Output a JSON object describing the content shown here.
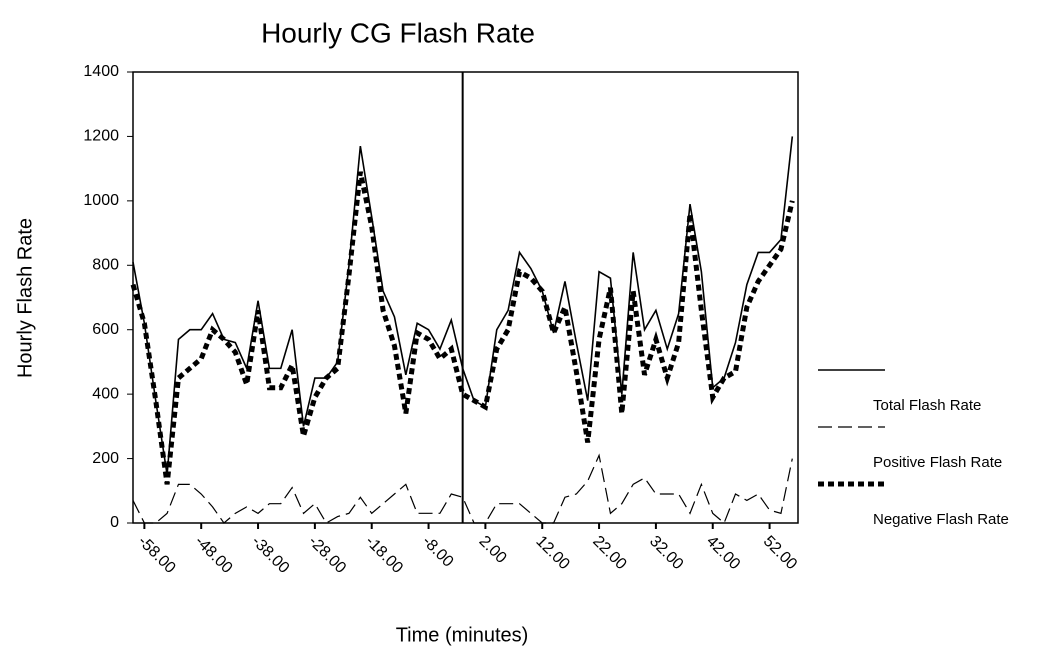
{
  "chart_data": {
    "type": "line",
    "title": "Hourly CG Flash Rate",
    "x_label": "Time (minutes)",
    "y_label": "Hourly Flash Rate",
    "x": [
      -60,
      -58,
      -56,
      -54,
      -52,
      -50,
      -48,
      -46,
      -44,
      -42,
      -40,
      -38,
      -36,
      -34,
      -32,
      -30,
      -28,
      -26,
      -24,
      -22,
      -20,
      -18,
      -16,
      -14,
      -12,
      -10,
      -8,
      -6,
      -4,
      -2,
      0,
      2,
      4,
      6,
      8,
      10,
      12,
      14,
      16,
      18,
      20,
      22,
      24,
      26,
      28,
      30,
      32,
      34,
      36,
      38,
      40,
      42,
      44,
      46,
      48,
      50,
      52,
      54,
      56
    ],
    "series": [
      {
        "name": "Total Flash Rate",
        "color": "#000000",
        "values": [
          810,
          620,
          380,
          150,
          570,
          600,
          600,
          650,
          570,
          560,
          480,
          690,
          480,
          480,
          600,
          300,
          450,
          450,
          500,
          800,
          1170,
          950,
          720,
          640,
          460,
          620,
          600,
          540,
          630,
          480,
          380,
          360,
          600,
          660,
          840,
          790,
          720,
          590,
          750,
          560,
          380,
          780,
          760,
          400,
          840,
          600,
          660,
          540,
          650,
          990,
          780,
          420,
          450,
          560,
          740,
          840,
          840,
          880,
          1200
        ]
      },
      {
        "name": "Positive Flash Rate",
        "color": "#000000",
        "values": [
          70,
          0,
          0,
          30,
          120,
          120,
          90,
          50,
          0,
          30,
          50,
          30,
          60,
          60,
          110,
          30,
          60,
          0,
          20,
          30,
          80,
          30,
          60,
          90,
          120,
          30,
          30,
          30,
          90,
          80,
          0,
          0,
          60,
          60,
          60,
          30,
          0,
          0,
          80,
          90,
          130,
          210,
          30,
          60,
          120,
          140,
          90,
          90,
          90,
          30,
          120,
          30,
          0,
          90,
          70,
          90,
          40,
          30,
          200
        ]
      },
      {
        "name": "Negative Flash Rate",
        "color": "#000000",
        "values": [
          740,
          620,
          380,
          120,
          450,
          480,
          510,
          600,
          570,
          530,
          430,
          660,
          420,
          420,
          490,
          270,
          390,
          450,
          480,
          770,
          1090,
          920,
          660,
          550,
          340,
          590,
          570,
          510,
          540,
          400,
          380,
          360,
          540,
          600,
          780,
          760,
          720,
          590,
          670,
          470,
          250,
          570,
          730,
          340,
          720,
          460,
          570,
          450,
          560,
          960,
          660,
          390,
          450,
          470,
          670,
          750,
          800,
          850,
          1000
        ]
      }
    ],
    "xlim": [
      -60,
      57
    ],
    "ylim": [
      0,
      1400
    ],
    "xticks": [
      {
        "value": -58,
        "label": "-58.00"
      },
      {
        "value": -48,
        "label": "-48.00"
      },
      {
        "value": -38,
        "label": "-38.00"
      },
      {
        "value": -28,
        "label": "-28.00"
      },
      {
        "value": -18,
        "label": "-18.00"
      },
      {
        "value": -8,
        "label": "-8.00"
      },
      {
        "value": 2,
        "label": "2.00"
      },
      {
        "value": 12,
        "label": "12.00"
      },
      {
        "value": 22,
        "label": "22.00"
      },
      {
        "value": 32,
        "label": "32.00"
      },
      {
        "value": 42,
        "label": "42.00"
      },
      {
        "value": 52,
        "label": "52.00"
      }
    ],
    "yticks": [
      0,
      200,
      400,
      600,
      800,
      1000,
      1200,
      1400
    ],
    "divider_x": -2,
    "grid": false,
    "legend": "right"
  }
}
